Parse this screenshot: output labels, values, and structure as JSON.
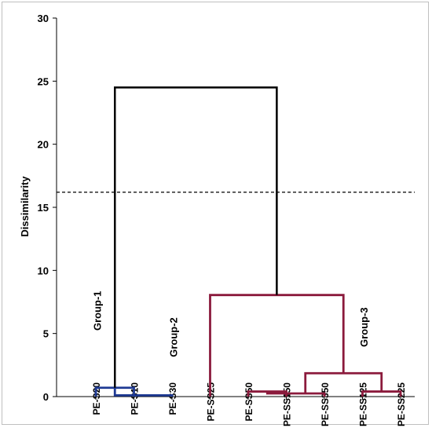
{
  "chart_data": {
    "type": "dendrogram",
    "ylabel": "Dissimilarity",
    "xlabel": "",
    "ylim": [
      0,
      30
    ],
    "yticks": [
      0,
      5,
      10,
      15,
      20,
      25,
      30
    ],
    "grid": false,
    "leaves": [
      "PE-S20",
      "PE-S10",
      "PE-S30",
      "PE-SS25",
      "PE-SS50",
      "PE-SS150",
      "PE-SS350",
      "PE-SS125",
      "PE-SS225"
    ],
    "truncation_line": 16.2,
    "colors": {
      "group1": "#1f3a93",
      "group23": "#8b1a3c",
      "root": "#000000",
      "truncation": "#000000"
    },
    "merges": [
      {
        "left": [
          0,
          0
        ],
        "right": [
          1,
          0
        ],
        "height": 0.7,
        "color": "group1"
      },
      {
        "left": [
          0.5,
          0.7
        ],
        "right": [
          2,
          0
        ],
        "height": 0.1,
        "color": "group1"
      },
      {
        "left": [
          4,
          0
        ],
        "right": [
          5,
          0
        ],
        "height": 0.4,
        "color": "group23"
      },
      {
        "left": [
          4.5,
          0.4
        ],
        "right": [
          6,
          0
        ],
        "height": 0.25,
        "color": "group23"
      },
      {
        "left": [
          7,
          0
        ],
        "right": [
          8,
          0
        ],
        "height": 0.4,
        "color": "group23"
      },
      {
        "left": [
          5.5,
          0.25
        ],
        "right": [
          7.5,
          0.4
        ],
        "height": 1.85,
        "color": "group23"
      },
      {
        "left": [
          3,
          0
        ],
        "right": [
          6.5,
          1.85
        ],
        "height": 8.05,
        "color": "group23"
      },
      {
        "left": [
          0.5,
          0.7
        ],
        "right": [
          4.75,
          8.05
        ],
        "height": 24.5,
        "color": "root"
      }
    ],
    "group_labels": [
      {
        "text": "Group-1",
        "x": 0.5,
        "y": 6.8
      },
      {
        "text": "Group-2",
        "x": 2.5,
        "y": 4.7
      },
      {
        "text": "Group-3",
        "x": 7.5,
        "y": 5.5
      }
    ]
  }
}
